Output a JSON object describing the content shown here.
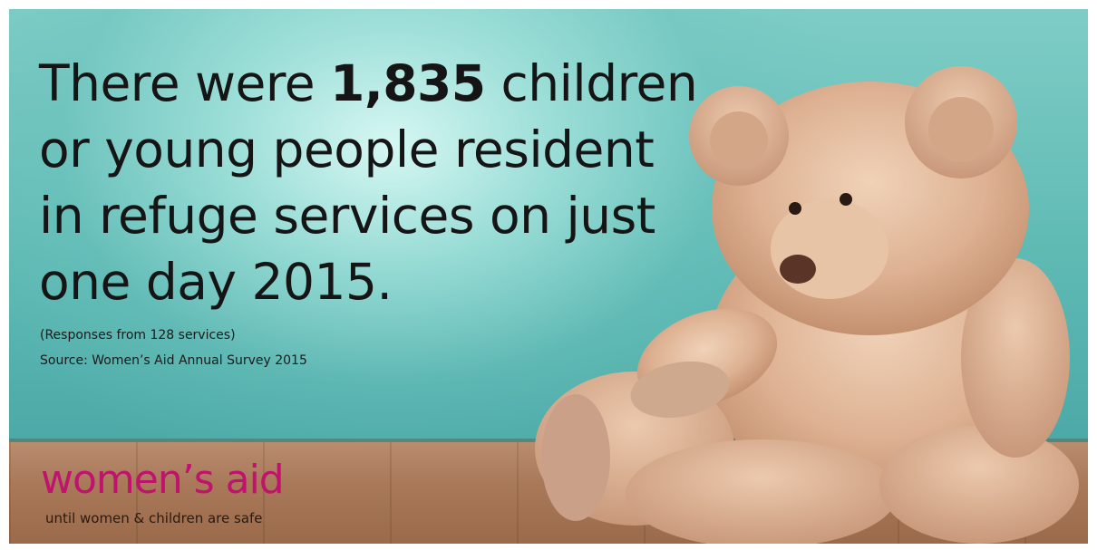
{
  "headline": {
    "part1": "There were ",
    "bold": "1,835",
    "part2": " children or young people resident in refuge services on just one day 2015."
  },
  "notes": {
    "responses": "(Responses from 128 services)",
    "source": "Source: Women’s Aid Annual Survey 2015"
  },
  "brand": {
    "logo_text": "women’s aid",
    "tagline": "until women & children are safe",
    "logo_color": "#c0136e"
  },
  "colors": {
    "wall": "#5fbab4",
    "floor": "#a9795a",
    "bear": "#e2b89a"
  },
  "image": {
    "subject": "teddy-bear"
  }
}
